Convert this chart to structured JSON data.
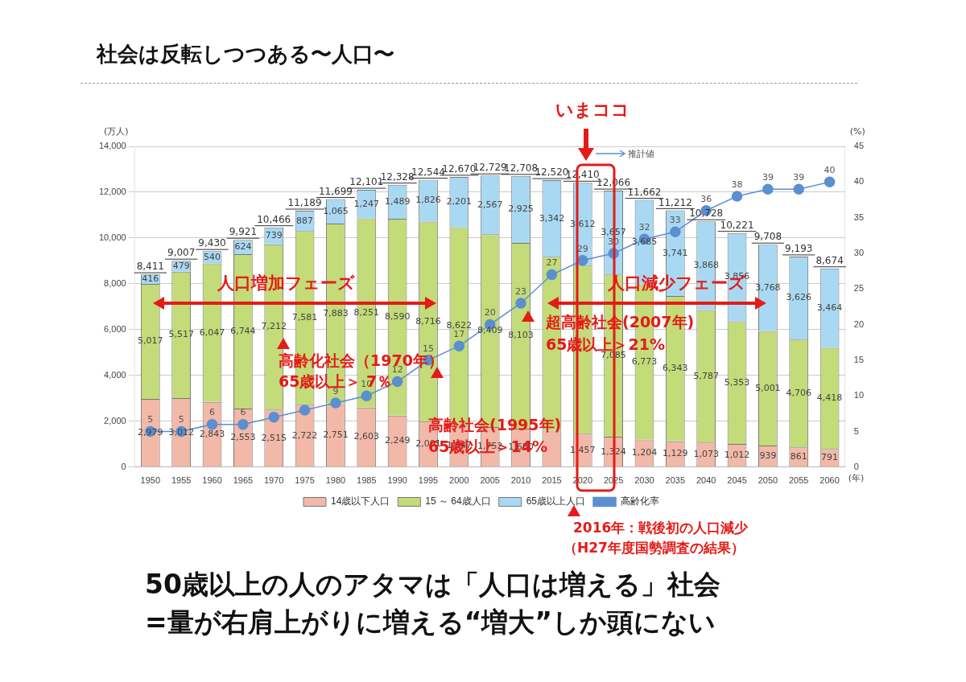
{
  "chart_data": {
    "type": "bar",
    "stacked": true,
    "title": "社会は反転しつつある〜人口〜",
    "categories": [
      "1950",
      "1955",
      "1960",
      "1965",
      "1970",
      "1975",
      "1980",
      "1985",
      "1990",
      "1995",
      "2000",
      "2005",
      "2010",
      "2015",
      "2020",
      "2025",
      "2030",
      "2035",
      "2040",
      "2045",
      "2050",
      "2055",
      "2060"
    ],
    "xlabel": "(年)",
    "ylabel": "(万人)",
    "y2label": "(%)",
    "series": [
      {
        "name": "14歳以下人口",
        "color": "#f2b8a8",
        "values": [
          2979,
          3012,
          2843,
          2553,
          2515,
          2722,
          2751,
          2603,
          2249,
          2001,
          1847,
          1752,
          1680,
          1590,
          1457,
          1324,
          1204,
          1129,
          1073,
          1012,
          939,
          861,
          791
        ],
        "value_labels": [
          "2,979",
          "3,012",
          "2,843",
          "2,553",
          "2,515",
          "2,722",
          "2,751",
          "2,603",
          "2,249",
          "2,001",
          "1,847",
          "1,752",
          "1,680",
          null,
          "1,457",
          "1,324",
          "1,204",
          "1,129",
          "1,073",
          "1,012",
          "939",
          "861",
          "791"
        ]
      },
      {
        "name": "15 ～ 64歳人口",
        "color": "#c3db78",
        "values": [
          5017,
          5517,
          6047,
          6744,
          7212,
          7581,
          7883,
          8251,
          8590,
          8716,
          8622,
          8409,
          8103,
          7590,
          7340,
          7085,
          6773,
          6343,
          5787,
          5353,
          5001,
          4706,
          4418
        ],
        "value_labels": [
          "5,017",
          "5,517",
          "6,047",
          "6,744",
          "7,212",
          "7,581",
          "7,883",
          "8,251",
          "8,590",
          "8,716",
          "8,622",
          "8,409",
          "8,103",
          null,
          null,
          "7,085",
          "6,773",
          "6,343",
          "5,787",
          "5,353",
          "5,001",
          "4,706",
          "4,418"
        ]
      },
      {
        "name": "65歳以上人口",
        "color": "#a9d9f2",
        "values": [
          416,
          479,
          540,
          624,
          739,
          887,
          1065,
          1247,
          1489,
          1826,
          2201,
          2567,
          2925,
          3342,
          3612,
          3657,
          3685,
          3741,
          3868,
          3856,
          3768,
          3626,
          3464
        ],
        "value_labels": [
          "416",
          "479",
          "540",
          "624",
          "739",
          "887",
          "1,065",
          "1,247",
          "1,489",
          "1,826",
          "2,201",
          "2,567",
          "2,925",
          "3,342",
          "3,612",
          "3,657",
          "3,685",
          "3,741",
          "3,868",
          "3,856",
          "3,768",
          "3,626",
          "3,464"
        ]
      },
      {
        "name": "高齢化率",
        "type": "line",
        "axis": "y2",
        "color": "#5b8fd0",
        "values": [
          5,
          5,
          6,
          6,
          7,
          8,
          9,
          10,
          12,
          15,
          17,
          20,
          23,
          27,
          29,
          30,
          32,
          33,
          36,
          38,
          39,
          39,
          40
        ],
        "value_labels": [
          "5",
          "5",
          "6",
          "6",
          null,
          null,
          "9",
          "10",
          "12",
          "15",
          "17",
          "20",
          "23",
          "27",
          "29",
          "30",
          "32",
          "33",
          "36",
          "38",
          "39",
          "39",
          "40"
        ]
      }
    ],
    "totals": [
      "8,411",
      "9,007",
      "9,430",
      "9,921",
      "10,466",
      "11,189",
      "11,699",
      "12,101",
      "12,328",
      "12,544",
      "12,670",
      "12,729",
      "12,708",
      "12,520",
      "12,410",
      "12,066",
      "11,662",
      "11,212",
      "10,728",
      "10,221",
      "9,708",
      "9,193",
      "8,674"
    ],
    "ylim": [
      0,
      14000
    ],
    "yticks": [
      0,
      {
        "value": 2000,
        "label": "2,000"
      },
      {
        "value": 4000,
        "label": "4,000"
      },
      {
        "value": 6000,
        "label": "6,000"
      },
      {
        "value": 8000,
        "label": "8,000"
      },
      {
        "value": 10000,
        "label": "10,000"
      },
      {
        "value": 12000,
        "label": "12,000"
      },
      {
        "value": 14000,
        "label": "14,000"
      }
    ],
    "y2lim": [
      0,
      45
    ],
    "y2ticks": [
      0,
      5,
      10,
      15,
      20,
      25,
      30,
      35,
      40,
      45
    ],
    "grid": "y",
    "legend": "bottom",
    "marker": "circle",
    "annotations": [
      "いまココ",
      "推計値",
      "人口増加フェーズ",
      "人口減少フェーズ",
      "高齢化社会（1970年）",
      "65歳以上＞ 7％",
      "高齢社会(1995年)",
      "65歳以上＞14%",
      "超高齢社会(2007年)",
      "65歳以上＞21%",
      "2016年：戦後初の人口減少",
      "（H27年度国勢調査の結果）",
      "50歳以上の人のアタマは「人口は増える」社会",
      "=量が右肩上がりに増える“増大”しか頭にない"
    ]
  }
}
